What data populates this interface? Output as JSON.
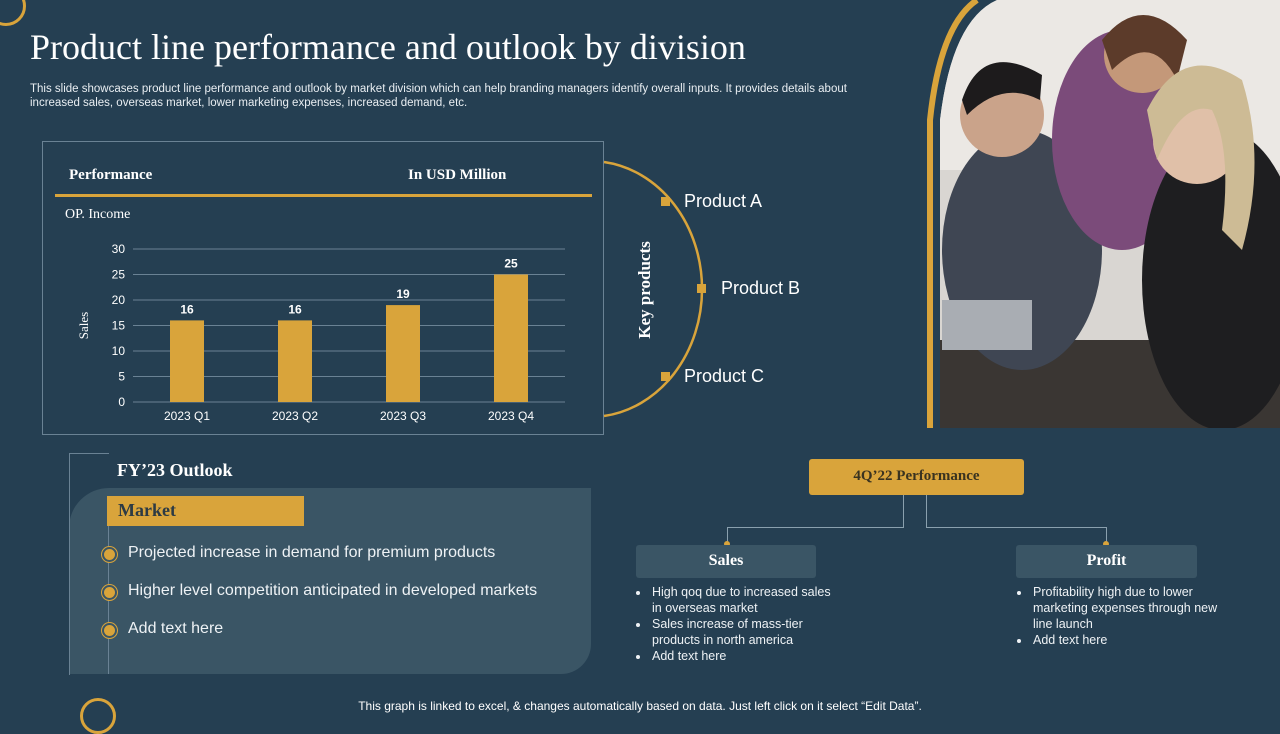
{
  "slide": {
    "title": "Product line performance and outlook by division",
    "subtitle": "This slide showcases product line performance and outlook by market division which can help branding managers identify overall inputs. It provides details about increased sales, overseas market, lower marketing expenses, increased demand, etc."
  },
  "chart_panel": {
    "header_left": "Performance",
    "header_right": "In USD Million",
    "subtitle": "OP. Income"
  },
  "chart_data": {
    "type": "bar",
    "title": "OP. Income",
    "categories": [
      "2023 Q1",
      "2023 Q2",
      "2023 Q3",
      "2023 Q4"
    ],
    "values": [
      16,
      16,
      19,
      25
    ],
    "ylabel": "Sales",
    "xlabel": "",
    "ylim": [
      0,
      30
    ],
    "yticks": [
      0,
      5,
      10,
      15,
      20,
      25,
      30
    ],
    "grid": true,
    "bar_color": "#d9a43b",
    "data_labels": true
  },
  "key_products": {
    "label": "Key products",
    "items": [
      "Product A",
      "Product B",
      "Product C"
    ]
  },
  "outlook": {
    "title": "FY’23 Outlook",
    "market_label": "Market",
    "items": [
      "Projected increase in demand for premium products",
      "Higher level competition anticipated in developed markets",
      "Add text here"
    ]
  },
  "performance_4q22": {
    "title": "4Q’22 Performance",
    "sales": {
      "label": "Sales",
      "items": [
        "High qoq due to increased sales in overseas market",
        "Sales increase of mass-tier products in north america",
        "Add text here"
      ]
    },
    "profit": {
      "label": "Profit",
      "items": [
        "Profitability high due to lower marketing expenses through new line launch",
        "Add text here"
      ]
    }
  },
  "footer": "This graph is linked to excel, & changes automatically based on data. Just left click on it select “Edit Data”.",
  "colors": {
    "background": "#253f52",
    "accent": "#d9a43b",
    "panel": "#3a5565"
  },
  "photo": {
    "icon": "team-photo-icon"
  }
}
